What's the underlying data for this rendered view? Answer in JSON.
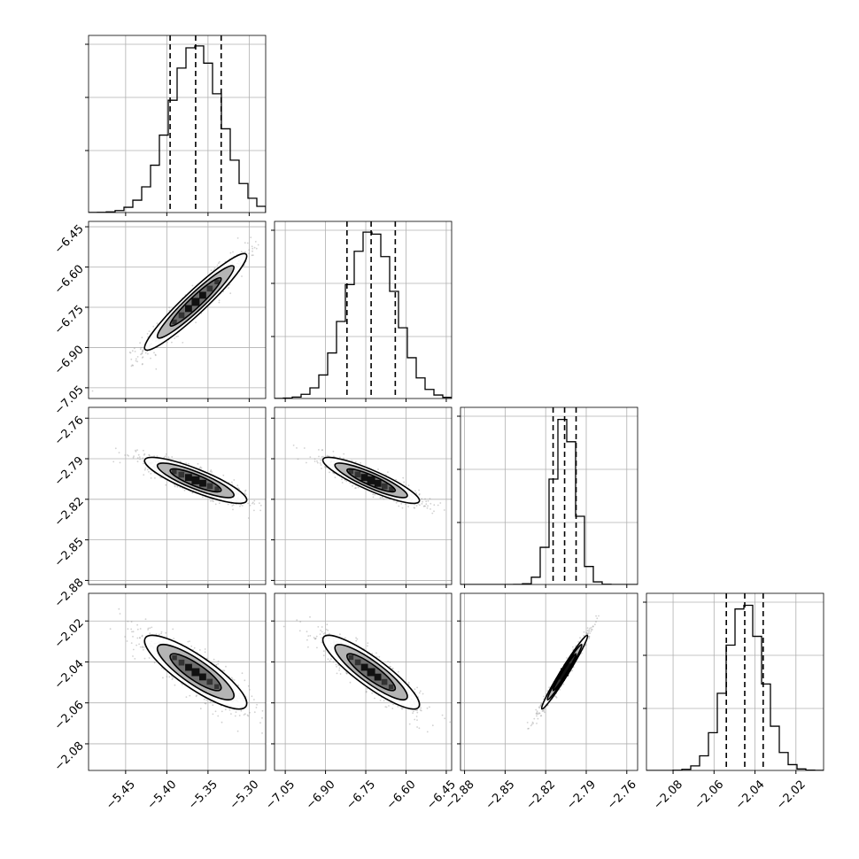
{
  "chart_data": {
    "type": "corner",
    "parameters": [
      {
        "mean": -5.365,
        "sd": 0.031,
        "q16": -5.396,
        "q50": -5.365,
        "q84": -5.334,
        "range": [
          -5.495,
          -5.28
        ],
        "ticks": [
          -5.45,
          -5.4,
          -5.35,
          -5.3
        ],
        "tick_labels": [
          "−5.45",
          "−5.40",
          "−5.35",
          "−5.30"
        ]
      },
      {
        "mean": -6.73,
        "sd": 0.09,
        "q16": -6.82,
        "q50": -6.73,
        "q84": -6.64,
        "range": [
          -7.09,
          -6.43
        ],
        "ticks": [
          -7.05,
          -6.9,
          -6.75,
          -6.6,
          -6.45
        ],
        "tick_labels": [
          "−7.05",
          "−6.90",
          "−6.75",
          "−6.60",
          "−6.45"
        ]
      },
      {
        "mean": -2.806,
        "sd": 0.0085,
        "q16": -2.8145,
        "q50": -2.806,
        "q84": -2.7975,
        "range": [
          -2.883,
          -2.752
        ],
        "ticks": [
          -2.88,
          -2.85,
          -2.82,
          -2.79,
          -2.76
        ],
        "tick_labels": [
          "−2.88",
          "−2.85",
          "−2.82",
          "−2.79",
          "−2.76"
        ]
      },
      {
        "mean": -2.045,
        "sd": 0.009,
        "q16": -2.054,
        "q50": -2.045,
        "q84": -2.036,
        "range": [
          -2.093,
          -2.0065
        ],
        "ticks": [
          -2.08,
          -2.06,
          -2.04,
          -2.02
        ],
        "tick_labels": [
          "−2.08",
          "−2.06",
          "−2.04",
          "−2.02"
        ]
      }
    ],
    "correlations": [
      [
        1,
        0.95,
        -0.85,
        -0.85
      ],
      [
        0.95,
        1,
        -0.88,
        -0.88
      ],
      [
        -0.85,
        -0.88,
        1,
        0.98
      ],
      [
        -0.85,
        -0.88,
        0.98,
        1
      ]
    ],
    "histogram_bins": 20,
    "contour_levels_sigma": [
      1,
      1.5,
      2
    ],
    "quantile_lines": [
      "q16",
      "q50",
      "q84"
    ],
    "grid": true,
    "colors": {
      "ink": "#000000",
      "scatter": "#9a9a9a",
      "grid": "#b0b0b0",
      "fill_dark": "#111111",
      "fill_mid": "#6e6e6e",
      "fill_light": "#b4b4b4"
    },
    "xlabel": "",
    "ylabel": "",
    "title": ""
  }
}
